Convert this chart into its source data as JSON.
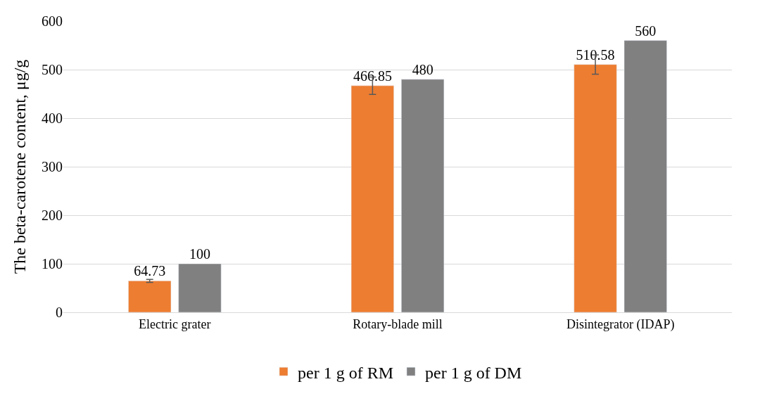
{
  "chart_data": {
    "type": "bar",
    "ylabel": "The beta-carotene content, μg/g",
    "categories": [
      "Electric grater",
      "Rotary-blade mill",
      "Disintegrator (IDAP)"
    ],
    "series": [
      {
        "name": "per 1 g of RM",
        "color": "#ed7d31",
        "values": [
          64.73,
          466.85,
          510.58
        ],
        "errors": [
          3,
          18,
          20
        ],
        "data_labels": true
      },
      {
        "name": "per 1 g of DM",
        "color": "#808080",
        "values": [
          100,
          480,
          560
        ],
        "data_labels": true
      }
    ],
    "ylim": [
      0,
      600
    ],
    "yticks": [
      0,
      100,
      200,
      300,
      400,
      500,
      600
    ],
    "grid": "y",
    "legend": "bottom"
  }
}
